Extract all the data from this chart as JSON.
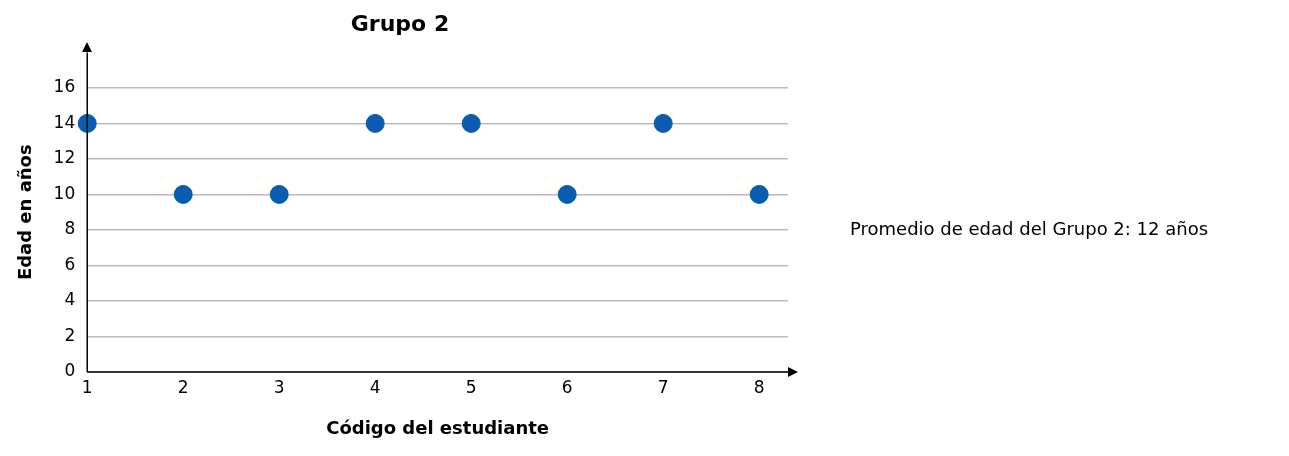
{
  "chart_data": {
    "type": "scatter",
    "title": "Grupo 2",
    "xlabel": "Código del estudiante",
    "ylabel": "Edad en años",
    "x": [
      1,
      2,
      3,
      4,
      5,
      6,
      7,
      8
    ],
    "series": [
      {
        "color": "#0a5cb0",
        "values": [
          14,
          10,
          10,
          14,
          14,
          10,
          14,
          10
        ]
      }
    ],
    "xlim": [
      1,
      8.3
    ],
    "xticks": [
      1,
      2,
      3,
      4,
      5,
      6,
      7,
      8
    ],
    "ylim": [
      0,
      18
    ],
    "yticks": [
      0,
      2,
      4,
      6,
      8,
      10,
      12,
      14,
      16
    ],
    "grid": "y",
    "marker": "circle",
    "legend": false,
    "annotations": [
      "Promedio de edad del Grupo 2: 12 años"
    ]
  }
}
